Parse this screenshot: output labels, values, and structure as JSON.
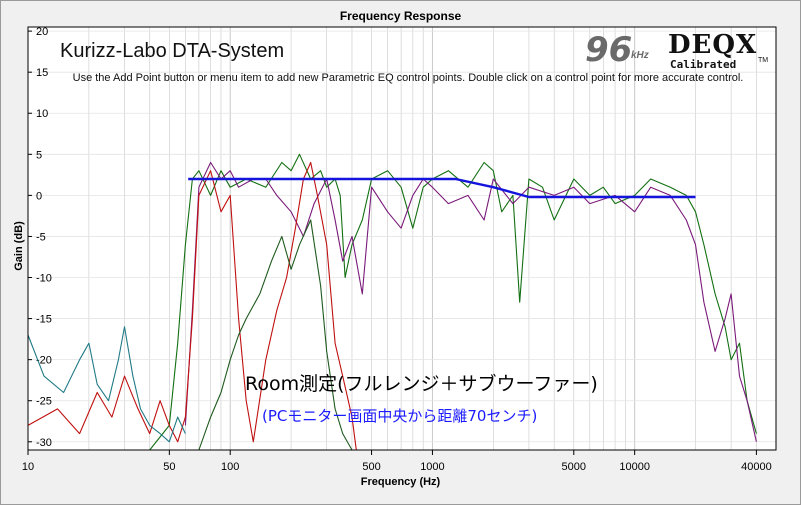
{
  "window": {
    "chart_title": "Frequency Response",
    "app_title": "Kurizz-Labo DTA-System",
    "instructions": "Use the Add Point button or menu item to add new Parametric EQ control points.  Double click on a control point for more accurate control.",
    "sample_rate_value": "96",
    "sample_rate_unit": "kHz",
    "brand_name": "DEQX",
    "brand_tagline": "Calibrated",
    "brand_mark": "TM",
    "annotation_main": "Room測定(フルレンジ＋サブウーファー)",
    "annotation_sub": "(PCモニター画面中央から距離70センチ)"
  },
  "colors": {
    "plot_background": "#ffffff",
    "grid": "#c8c8c8",
    "target_curve": "#1414dc",
    "series_green": "#127012",
    "series_purple": "#7a1a7a",
    "series_red": "#c01010",
    "series_teal": "#207a86",
    "series_dark_green": "#1e5a1e"
  },
  "chart_data": {
    "type": "line",
    "title": "Frequency Response",
    "xlabel": "Frequency (Hz)",
    "ylabel": "Gain (dB)",
    "x_scale": "log",
    "xlim": [
      10,
      50000
    ],
    "ylim": [
      -31,
      20.5
    ],
    "x_ticks": [
      10,
      50,
      100,
      500,
      1000,
      5000,
      10000,
      40000
    ],
    "x_tick_labels": [
      "10",
      "50",
      "100",
      "500",
      "1000",
      "5000",
      "10000",
      "40000"
    ],
    "y_ticks": [
      20,
      15,
      10,
      5,
      0,
      -5,
      -10,
      -15,
      -20,
      -25,
      -30
    ],
    "y_tick_labels": [
      "20",
      "15",
      "10",
      "5",
      "0",
      "-5",
      "-10",
      "-15",
      "-20",
      "-25",
      "-30"
    ],
    "grid": true,
    "series": [
      {
        "color_key": "target_curve",
        "x": [
          62,
          100,
          500,
          1000,
          1300,
          2000,
          3000,
          5000,
          10000,
          20000
        ],
        "y": [
          2,
          2,
          2,
          2,
          2,
          1,
          -0.2,
          -0.2,
          -0.2,
          -0.2
        ]
      },
      {
        "color_key": "series_green",
        "x": [
          40,
          50,
          55,
          60,
          65,
          70,
          80,
          90,
          100,
          120,
          150,
          180,
          200,
          220,
          250,
          280,
          300,
          330,
          350,
          370,
          400,
          450,
          500,
          600,
          700,
          800,
          900,
          1000,
          1200,
          1500,
          1800,
          2000,
          2200,
          2500,
          2700,
          3000,
          3500,
          4000,
          5000,
          6000,
          7000,
          8000,
          10000,
          12000,
          15000,
          18000,
          20000,
          22000,
          25000,
          28000,
          30000,
          33000,
          36000,
          40000
        ],
        "y": [
          -31,
          -28,
          -18,
          -6,
          2,
          3,
          0,
          3,
          1,
          2,
          1,
          4,
          3,
          5,
          2,
          3,
          1,
          2,
          0,
          -10,
          -6,
          -3,
          2,
          3,
          1,
          -4,
          1,
          2,
          3,
          1,
          4,
          3,
          -2,
          0,
          -13,
          2,
          1,
          -3,
          2,
          0,
          1,
          -1,
          0,
          2,
          1,
          0,
          -2,
          -6,
          -12,
          -16,
          -20,
          -18,
          -25,
          -29
        ]
      },
      {
        "color_key": "series_purple",
        "x": [
          60,
          65,
          70,
          80,
          90,
          100,
          110,
          130,
          150,
          170,
          200,
          230,
          260,
          300,
          330,
          360,
          400,
          450,
          500,
          600,
          700,
          800,
          900,
          1000,
          1200,
          1500,
          1800,
          2000,
          2500,
          3000,
          4000,
          5000,
          6000,
          8000,
          10000,
          12000,
          15000,
          18000,
          20000,
          22000,
          25000,
          28000,
          30000,
          33000,
          36000,
          40000
        ],
        "y": [
          -28,
          -14,
          1,
          4,
          2,
          3,
          1,
          2,
          2,
          0,
          -2,
          -5,
          -1,
          2,
          -3,
          -8,
          -5,
          -12,
          1,
          -2,
          -4,
          0,
          2,
          1,
          -1,
          0,
          -3,
          2,
          -1,
          1,
          0,
          1,
          -1,
          0,
          -2,
          1,
          0,
          -3,
          -6,
          -13,
          -19,
          -15,
          -12,
          -22,
          -25,
          -30
        ]
      },
      {
        "color_key": "series_red",
        "x": [
          10,
          14,
          18,
          22,
          26,
          30,
          35,
          40,
          45,
          50,
          55,
          60,
          65,
          70,
          80,
          90,
          100,
          110,
          120,
          130,
          150,
          170,
          190,
          210,
          230,
          250,
          270,
          300,
          330,
          360,
          400,
          420
        ],
        "y": [
          -28,
          -26,
          -29,
          -24,
          -27,
          -22,
          -26,
          -29,
          -25,
          -28,
          -30,
          -27,
          -15,
          0,
          3,
          -2,
          0,
          -15,
          -25,
          -30,
          -20,
          -14,
          -10,
          -4,
          2,
          4,
          0,
          -6,
          -18,
          -22,
          -27,
          -31
        ]
      },
      {
        "color_key": "series_teal",
        "x": [
          10,
          12,
          15,
          18,
          20,
          22,
          25,
          28,
          30,
          33,
          36,
          40,
          45,
          50,
          55,
          60
        ],
        "y": [
          -17,
          -22,
          -24,
          -20,
          -18,
          -23,
          -25,
          -20,
          -16,
          -22,
          -26,
          -28,
          -29,
          -30,
          -27,
          -29
        ]
      },
      {
        "color_key": "series_dark_green",
        "x": [
          70,
          80,
          90,
          100,
          110,
          120,
          140,
          160,
          180,
          200,
          220,
          250,
          280,
          300,
          330,
          360,
          400
        ],
        "y": [
          -31,
          -27,
          -24,
          -20,
          -17,
          -15,
          -12,
          -8,
          -5,
          -9,
          -6,
          -3,
          -11,
          -19,
          -26,
          -29,
          -31
        ]
      }
    ]
  }
}
